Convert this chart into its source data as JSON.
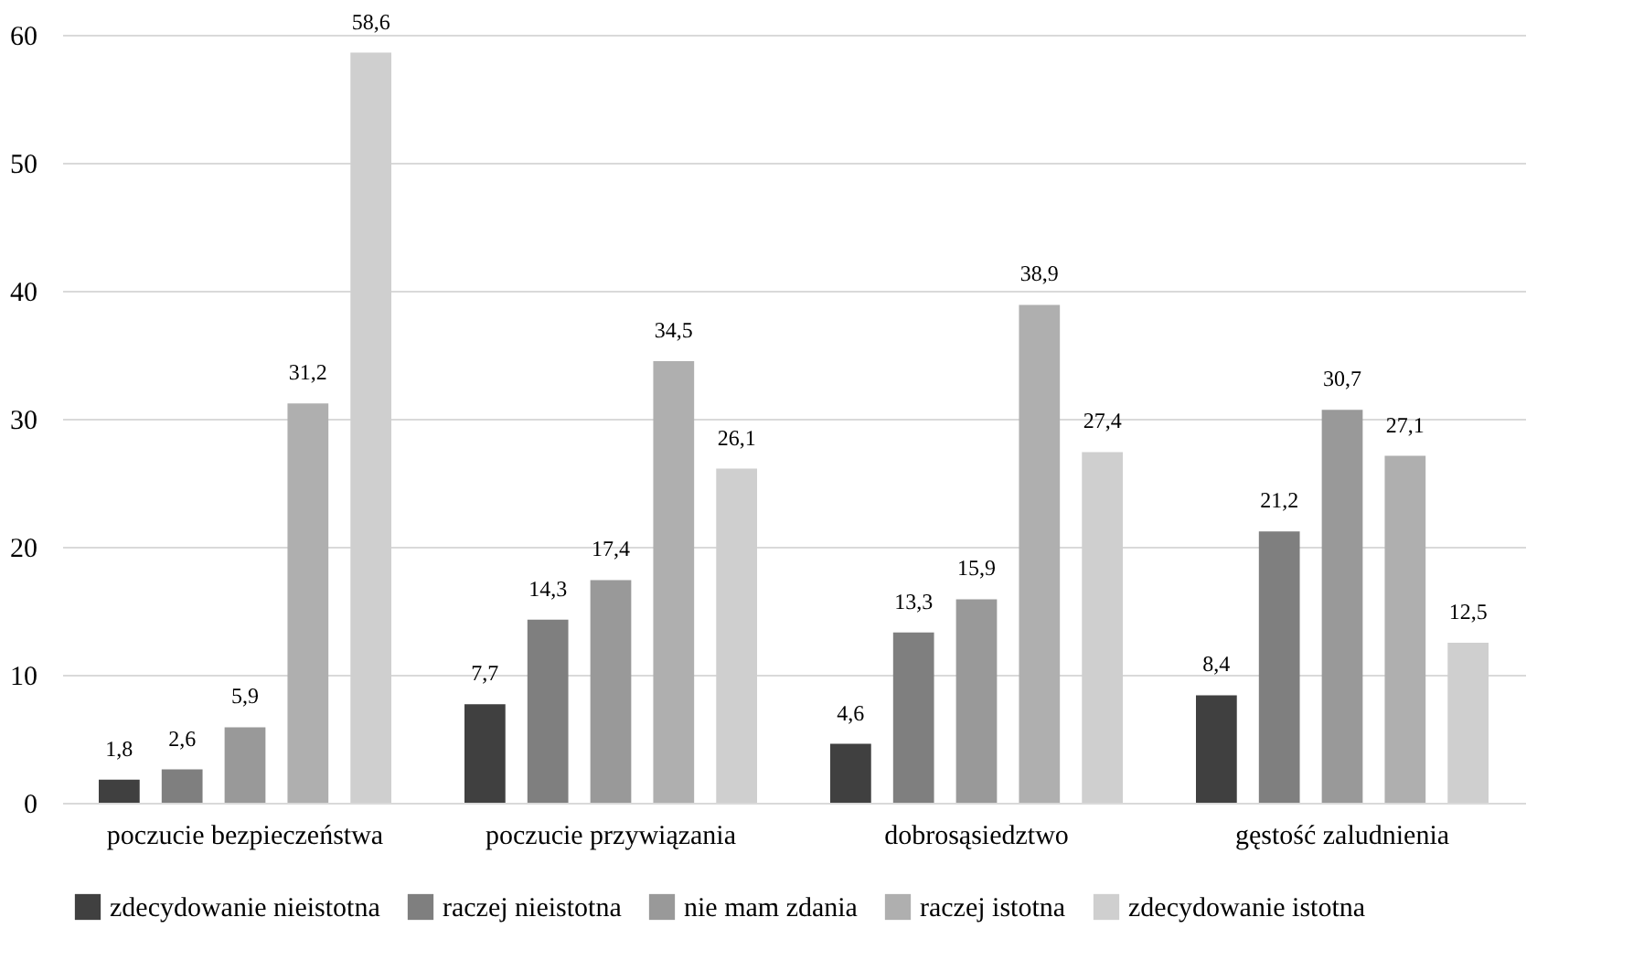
{
  "chart_data": {
    "type": "bar",
    "categories": [
      "poczucie bezpieczeństwa",
      "poczucie przywiązania",
      "dobrosąsiedztwo",
      "gęstość zaludnienia"
    ],
    "series": [
      {
        "name": "zdecydowanie nieistotna",
        "color": "#404040",
        "values": [
          1.8,
          7.7,
          4.6,
          8.4
        ],
        "value_labels": [
          "1,8",
          "7,7",
          "4,6",
          "8,4"
        ]
      },
      {
        "name": "raczej nieistotna",
        "color": "#7f7f7f",
        "values": [
          2.6,
          14.3,
          13.3,
          21.2
        ],
        "value_labels": [
          "2,6",
          "14,3",
          "13,3",
          "21,2"
        ]
      },
      {
        "name": "nie mam zdania",
        "color": "#999999",
        "values": [
          5.9,
          17.4,
          15.9,
          30.7
        ],
        "value_labels": [
          "5,9",
          "17,4",
          "15,9",
          "30,7"
        ]
      },
      {
        "name": "raczej istotna",
        "color": "#afafaf",
        "values": [
          31.2,
          34.5,
          38.9,
          27.1
        ],
        "value_labels": [
          "31,2",
          "34,5",
          "38,9",
          "27,1"
        ]
      },
      {
        "name": "zdecydowanie istotna",
        "color": "#cfcfcf",
        "values": [
          58.6,
          26.1,
          27.4,
          12.5
        ],
        "value_labels": [
          "58,6",
          "26,1",
          "27,4",
          "12,5"
        ]
      }
    ],
    "ylim": [
      0,
      60
    ],
    "yticks": [
      0,
      10,
      20,
      30,
      40,
      50,
      60
    ],
    "grid": "y",
    "legend": "bottom"
  }
}
